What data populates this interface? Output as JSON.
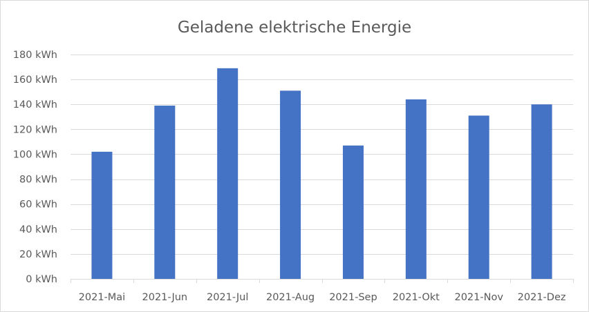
{
  "chart_data": {
    "type": "bar",
    "title": "Geladene elektrische Energie",
    "xlabel": "",
    "ylabel": "",
    "categories": [
      "2021-Mai",
      "2021-Jun",
      "2021-Jul",
      "2021-Aug",
      "2021-Sep",
      "2021-Okt",
      "2021-Nov",
      "2021-Dez"
    ],
    "series": [
      {
        "values": [
          102,
          139,
          169,
          151,
          107,
          144,
          131,
          140
        ]
      }
    ],
    "ylim": [
      0,
      180
    ],
    "yticks": [
      0,
      20,
      40,
      60,
      80,
      100,
      120,
      140,
      160,
      180
    ],
    "ytick_labels": [
      "0 kWh",
      "20 kWh",
      "40 kWh",
      "60 kWh",
      "80 kWh",
      "100 kWh",
      "120 kWh",
      "140 kWh",
      "160 kWh",
      "180 kWh"
    ],
    "grid": true,
    "legend": "none",
    "bar_color": "#4472c4",
    "grid_color": "#d9d9d9",
    "text_color": "#595959"
  }
}
